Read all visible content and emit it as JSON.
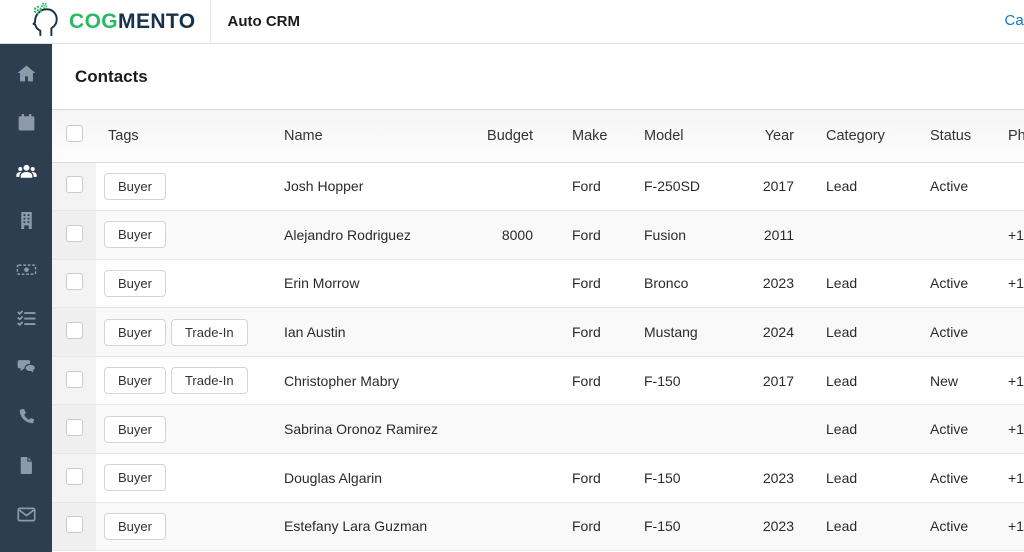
{
  "topnav": {
    "brand": {
      "text_primary": "COG",
      "text_secondary": "MENTO",
      "logo_icon": "cogmento-head-gears-icon"
    },
    "app_title": "Auto CRM",
    "calendar_link_label": "Cal"
  },
  "sidebar": {
    "background": "#2d3e50",
    "active_item": "contacts",
    "items": [
      {
        "id": "home",
        "icon": "home-icon"
      },
      {
        "id": "calendar",
        "icon": "calendar-icon"
      },
      {
        "id": "contacts",
        "icon": "people-icon",
        "active": true
      },
      {
        "id": "companies",
        "icon": "building-icon"
      },
      {
        "id": "deals",
        "icon": "money-icon"
      },
      {
        "id": "tasks",
        "icon": "checklist-icon"
      },
      {
        "id": "conversations",
        "icon": "chat-icon"
      },
      {
        "id": "calls",
        "icon": "phone-icon"
      },
      {
        "id": "documents",
        "icon": "file-icon"
      },
      {
        "id": "email",
        "icon": "envelope-icon"
      }
    ]
  },
  "page": {
    "title": "Contacts"
  },
  "table": {
    "columns": [
      {
        "key": "tags",
        "label": "Tags"
      },
      {
        "key": "name",
        "label": "Name"
      },
      {
        "key": "budget",
        "label": "Budget"
      },
      {
        "key": "make",
        "label": "Make"
      },
      {
        "key": "model",
        "label": "Model"
      },
      {
        "key": "year",
        "label": "Year"
      },
      {
        "key": "category",
        "label": "Category"
      },
      {
        "key": "status",
        "label": "Status"
      },
      {
        "key": "phone",
        "label": "Ph"
      }
    ],
    "rows": [
      {
        "tags": [
          "Buyer"
        ],
        "name": "Josh Hopper",
        "budget": "",
        "make": "Ford",
        "model": "F-250SD",
        "year": "2017",
        "category": "Lead",
        "status": "Active",
        "phone": ""
      },
      {
        "tags": [
          "Buyer"
        ],
        "name": "Alejandro Rodriguez",
        "budget": "8000",
        "make": "Ford",
        "model": "Fusion",
        "year": "2011",
        "category": "",
        "status": "",
        "phone": "+1"
      },
      {
        "tags": [
          "Buyer"
        ],
        "name": "Erin Morrow",
        "budget": "",
        "make": "Ford",
        "model": "Bronco",
        "year": "2023",
        "category": "Lead",
        "status": "Active",
        "phone": "+1"
      },
      {
        "tags": [
          "Buyer",
          "Trade-In"
        ],
        "name": "Ian Austin",
        "budget": "",
        "make": "Ford",
        "model": "Mustang",
        "year": "2024",
        "category": "Lead",
        "status": "Active",
        "phone": ""
      },
      {
        "tags": [
          "Buyer",
          "Trade-In"
        ],
        "name": "Christopher Mabry",
        "budget": "",
        "make": "Ford",
        "model": "F-150",
        "year": "2017",
        "category": "Lead",
        "status": "New",
        "phone": "+1"
      },
      {
        "tags": [
          "Buyer"
        ],
        "name": "Sabrina Oronoz Ramirez",
        "budget": "",
        "make": "",
        "model": "",
        "year": "",
        "category": "Lead",
        "status": "Active",
        "phone": "+1"
      },
      {
        "tags": [
          "Buyer"
        ],
        "name": "Douglas Algarin",
        "budget": "",
        "make": "Ford",
        "model": "F-150",
        "year": "2023",
        "category": "Lead",
        "status": "Active",
        "phone": "+1"
      },
      {
        "tags": [
          "Buyer"
        ],
        "name": "Estefany Lara Guzman",
        "budget": "",
        "make": "Ford",
        "model": "F-150",
        "year": "2023",
        "category": "Lead",
        "status": "Active",
        "phone": "+1"
      }
    ]
  },
  "colors": {
    "brand_green": "#2bb966",
    "brand_navy": "#16324c",
    "sidebar_bg": "#2d3e50",
    "link_blue": "#1678c2"
  }
}
